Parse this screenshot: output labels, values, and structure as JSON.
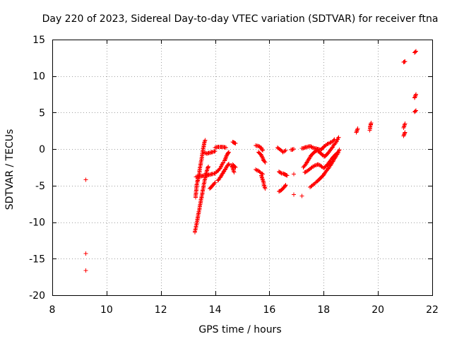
{
  "chart_data": {
    "type": "scatter",
    "title": "Day 220 of 2023, Sidereal Day-to-day VTEC variation (SDTVAR) for receiver ftna",
    "xlabel": "GPS time / hours",
    "ylabel": "SDTVAR / TECUs",
    "xlim": [
      8,
      22
    ],
    "ylim": [
      -20,
      15
    ],
    "x_ticks": [
      8,
      10,
      12,
      14,
      16,
      18,
      20,
      22
    ],
    "x_tick_labels": [
      "8",
      "10",
      "12",
      "14",
      "16",
      "18",
      "20",
      "22"
    ],
    "y_ticks": [
      -20,
      -15,
      -10,
      -5,
      0,
      5,
      10,
      15
    ],
    "y_tick_labels": [
      "-20",
      "-15",
      "-10",
      "-5",
      "0",
      "5",
      "10",
      "15"
    ],
    "grid": true,
    "marker": "+",
    "colors": {
      "series": "#ff0000",
      "grid": "#a0a0a0",
      "axes": "#000000"
    },
    "series": [
      {
        "name": "SDTVAR",
        "segments": [
          {
            "x": [
              9.23
            ],
            "y": [
              -4.2
            ]
          },
          {
            "x": [
              9.23
            ],
            "y": [
              -14.3
            ]
          },
          {
            "x": [
              9.23
            ],
            "y": [
              -16.6
            ]
          },
          {
            "x": [
              13.25,
              13.28,
              13.31,
              13.35,
              13.38,
              13.42,
              13.46,
              13.5,
              13.54,
              13.58,
              13.62,
              13.65,
              13.68,
              13.72,
              13.75
            ],
            "y": [
              -11.4,
              -10.9,
              -10.4,
              -9.6,
              -9.0,
              -8.2,
              -7.4,
              -6.6,
              -5.8,
              -5.0,
              -4.2,
              -3.6,
              -3.1,
              -2.6,
              -2.4
            ]
          },
          {
            "x": [
              13.28,
              13.3,
              13.32,
              13.35,
              13.38,
              13.42,
              13.45,
              13.5,
              13.53,
              13.57,
              13.6,
              13.63
            ],
            "y": [
              -6.6,
              -5.8,
              -5.0,
              -4.4,
              -4.0,
              -3.2,
              -2.4,
              -1.4,
              -0.6,
              0.2,
              0.8,
              1.2
            ]
          },
          {
            "x": [
              13.3,
              13.4,
              13.5,
              13.6,
              13.7,
              13.8,
              13.9,
              14.0,
              14.1,
              14.2,
              14.3
            ],
            "y": [
              -3.8,
              -3.7,
              -3.7,
              -3.6,
              -3.6,
              -3.5,
              -3.4,
              -3.3,
              -3.0,
              -2.5,
              -1.8
            ]
          },
          {
            "x": [
              13.6,
              13.7,
              13.8,
              13.9,
              14.0
            ],
            "y": [
              -0.5,
              -0.6,
              -0.5,
              -0.4,
              -0.3
            ]
          },
          {
            "x": [
              13.8,
              13.9,
              14.0
            ],
            "y": [
              -5.4,
              -5.0,
              -4.6
            ]
          },
          {
            "x": [
              14.0,
              14.1,
              14.2,
              14.3,
              14.4
            ],
            "y": [
              0.2,
              0.3,
              0.3,
              0.3,
              0.2
            ]
          },
          {
            "x": [
              14.1,
              14.2,
              14.3,
              14.4,
              14.5
            ],
            "y": [
              -4.3,
              -3.8,
              -3.2,
              -2.6,
              -2.0
            ]
          },
          {
            "x": [
              14.35,
              14.4,
              14.45,
              14.5
            ],
            "y": [
              -1.6,
              -1.1,
              -0.7,
              -0.4
            ]
          },
          {
            "x": [
              14.6,
              14.65,
              14.7
            ],
            "y": [
              -2.2,
              -2.6,
              -3.2
            ]
          },
          {
            "x": [
              14.65,
              14.7,
              14.75
            ],
            "y": [
              -2.1,
              -2.3,
              -2.5
            ]
          },
          {
            "x": [
              14.65,
              14.7,
              14.75
            ],
            "y": [
              1.0,
              0.9,
              0.8
            ]
          },
          {
            "x": [
              15.5,
              15.6,
              15.7,
              15.75
            ],
            "y": [
              0.5,
              0.4,
              0.2,
              -0.2
            ]
          },
          {
            "x": [
              15.6,
              15.7,
              15.75,
              15.8,
              15.85
            ],
            "y": [
              -0.4,
              -0.8,
              -1.2,
              -1.6,
              -1.8
            ]
          },
          {
            "x": [
              15.5,
              15.6,
              15.7,
              15.75
            ],
            "y": [
              -2.8,
              -3.0,
              -3.3,
              -3.4
            ]
          },
          {
            "x": [
              15.7,
              15.75,
              15.8,
              15.85
            ],
            "y": [
              -3.6,
              -4.2,
              -4.8,
              -5.4
            ]
          },
          {
            "x": [
              16.3,
              16.4,
              16.5,
              16.6
            ],
            "y": [
              0.2,
              -0.1,
              -0.4,
              -0.2
            ]
          },
          {
            "x": [
              16.35,
              16.45,
              16.55,
              16.6,
              16.65
            ],
            "y": [
              -3.1,
              -3.3,
              -3.4,
              -3.5,
              -3.6
            ]
          },
          {
            "x": [
              16.35,
              16.45,
              16.55,
              16.6
            ],
            "y": [
              -5.8,
              -5.6,
              -5.2,
              -4.9
            ]
          },
          {
            "x": [
              16.8,
              16.9
            ],
            "y": [
              -0.1,
              0.0
            ]
          },
          {
            "x": [
              16.9
            ],
            "y": [
              -3.4
            ]
          },
          {
            "x": [
              16.9
            ],
            "y": [
              -6.2
            ]
          },
          {
            "x": [
              17.2
            ],
            "y": [
              -6.4
            ]
          },
          {
            "x": [
              17.2,
              17.3,
              17.4,
              17.5,
              17.6,
              17.7,
              17.8,
              17.9,
              18.0,
              18.1,
              18.2,
              18.3,
              18.4
            ],
            "y": [
              0.1,
              0.2,
              0.3,
              0.4,
              0.2,
              0.1,
              0.0,
              -0.1,
              0.3,
              0.6,
              0.8,
              1.0,
              1.3
            ]
          },
          {
            "x": [
              17.25,
              17.35,
              17.45,
              17.55,
              17.65,
              17.75,
              17.85,
              17.95,
              18.05,
              18.15,
              18.25,
              18.35,
              18.45,
              18.55
            ],
            "y": [
              -2.5,
              -2.0,
              -1.4,
              -0.8,
              -0.4,
              -0.2,
              -0.4,
              -0.8,
              -1.0,
              -0.6,
              -0.1,
              0.4,
              0.9,
              1.6
            ]
          },
          {
            "x": [
              17.3,
              17.4,
              17.5,
              17.6,
              17.7,
              17.8,
              17.9,
              18.0,
              18.1,
              18.2,
              18.3,
              18.4,
              18.5
            ],
            "y": [
              -3.2,
              -3.0,
              -2.7,
              -2.4,
              -2.2,
              -2.1,
              -2.3,
              -2.6,
              -2.3,
              -1.8,
              -1.3,
              -0.9,
              -0.5
            ]
          },
          {
            "x": [
              17.5,
              17.6,
              17.7,
              17.8,
              17.9,
              18.0,
              18.1,
              18.2,
              18.3,
              18.4,
              18.5,
              18.58
            ],
            "y": [
              -5.2,
              -4.9,
              -4.6,
              -4.3,
              -3.9,
              -3.5,
              -3.0,
              -2.5,
              -1.9,
              -1.3,
              -0.7,
              -0.1
            ]
          },
          {
            "x": [
              19.2,
              19.25
            ],
            "y": [
              2.3,
              2.8
            ]
          },
          {
            "x": [
              19.7,
              19.72,
              19.75
            ],
            "y": [
              2.6,
              3.2,
              3.6
            ]
          },
          {
            "x": [
              20.95,
              21.0
            ],
            "y": [
              11.9,
              12.0
            ]
          },
          {
            "x": [
              20.95,
              21.0
            ],
            "y": [
              2.9,
              3.5
            ]
          },
          {
            "x": [
              20.95,
              21.0
            ],
            "y": [
              1.8,
              2.3
            ]
          },
          {
            "x": [
              21.35,
              21.4
            ],
            "y": [
              13.2,
              13.4
            ]
          },
          {
            "x": [
              21.35,
              21.4
            ],
            "y": [
              7.0,
              7.5
            ]
          },
          {
            "x": [
              21.35,
              21.4
            ],
            "y": [
              5.1,
              5.3
            ]
          }
        ]
      }
    ]
  }
}
